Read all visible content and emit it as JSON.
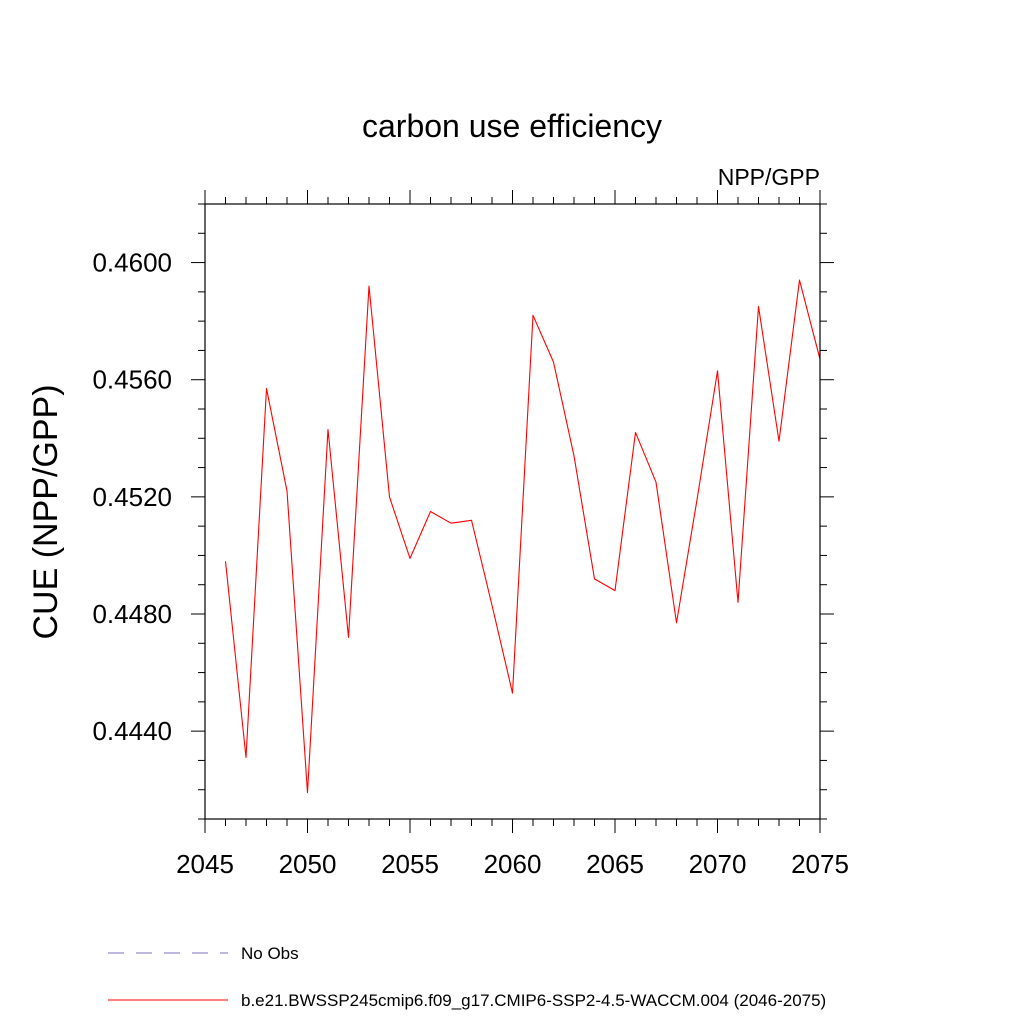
{
  "chart_data": {
    "type": "line",
    "title": "carbon use efficiency",
    "subtitle": "NPP/GPP",
    "xlabel": "",
    "ylabel": "CUE  (NPP/GPP)",
    "xlim": [
      2045,
      2075
    ],
    "ylim": [
      0.441,
      0.462
    ],
    "x_ticks": [
      2045,
      2050,
      2055,
      2060,
      2065,
      2070,
      2075
    ],
    "x_tick_labels": [
      "2045",
      "2050",
      "2055",
      "2060",
      "2065",
      "2070",
      "2075"
    ],
    "y_ticks": [
      0.444,
      0.448,
      0.452,
      0.456,
      0.46
    ],
    "y_tick_labels": [
      "0.4440",
      "0.4480",
      "0.4520",
      "0.4560",
      "0.4600"
    ],
    "grid": false,
    "legend_position": "bottom",
    "series": [
      {
        "name": "b.e21.BWSSP245cmip6.f09_g17.CMIP6-SSP2-4.5-WACCM.004 (2046-2075)",
        "color": "#ff0000",
        "style": "solid",
        "x": [
          2046,
          2047,
          2048,
          2049,
          2050,
          2051,
          2052,
          2053,
          2054,
          2055,
          2056,
          2057,
          2058,
          2059,
          2060,
          2061,
          2062,
          2063,
          2064,
          2065,
          2066,
          2067,
          2068,
          2069,
          2070,
          2071,
          2072,
          2073,
          2074,
          2075
        ],
        "values": [
          0.4498,
          0.4431,
          0.4557,
          0.4522,
          0.4419,
          0.4543,
          0.4472,
          0.4592,
          0.452,
          0.4499,
          0.4515,
          0.4511,
          0.4512,
          0.4483,
          0.4453,
          0.4582,
          0.4566,
          0.4534,
          0.4492,
          0.4488,
          0.4542,
          0.4525,
          0.4477,
          0.4519,
          0.4563,
          0.4484,
          0.4585,
          0.4539,
          0.4594,
          0.4567
        ]
      }
    ],
    "legend": [
      {
        "label": "No Obs",
        "color": "#7a70c0",
        "style": "dashed"
      },
      {
        "label": "b.e21.BWSSP245cmip6.f09_g17.CMIP6-SSP2-4.5-WACCM.004 (2046-2075)",
        "color": "#ff0000",
        "style": "solid"
      }
    ]
  }
}
